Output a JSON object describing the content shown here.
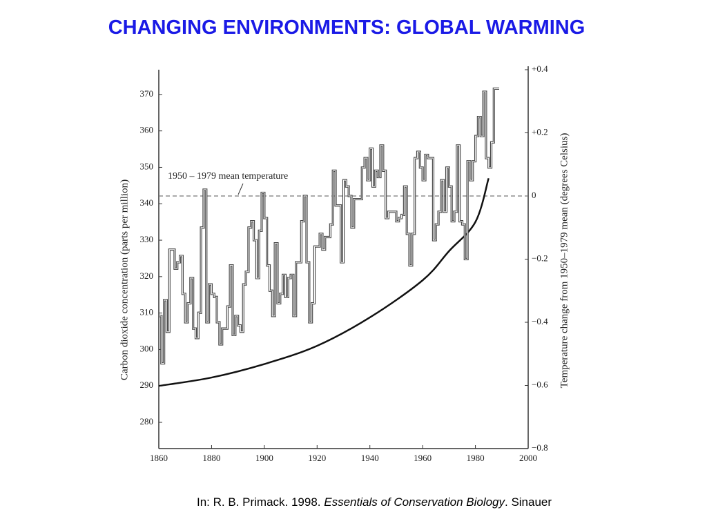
{
  "chart_data": {
    "type": "line",
    "title": "CHANGING ENVIRONMENTS: GLOBAL WARMING",
    "y_label": "Carbon dioxide concentration (parts per million)",
    "y2_label": "Temperature change from 1950–1979 mean (degrees Celsius)",
    "xlim": [
      1860,
      2000
    ],
    "xticks": [
      1860,
      1880,
      1900,
      1920,
      1940,
      1960,
      1980,
      2000
    ],
    "ylim": [
      272.8,
      376.8
    ],
    "yticks": [
      280,
      290,
      300,
      310,
      320,
      330,
      340,
      350,
      360,
      370
    ],
    "y2lim": [
      -0.8,
      0.4
    ],
    "y2ticks": [
      {
        "value": 0.4,
        "label": "+0.4"
      },
      {
        "value": 0.2,
        "label": "+0.2"
      },
      0,
      {
        "value": -0.2,
        "label": "−0.2"
      },
      {
        "value": -0.4,
        "label": "−0.4"
      },
      {
        "value": -0.6,
        "label": "−0.6"
      },
      {
        "value": -0.8,
        "label": "−0.8"
      }
    ],
    "reference_line": {
      "value": 0,
      "axis": "y2",
      "label": "1950 – 1979 mean temperature"
    },
    "series": [
      {
        "name": "Carbon dioxide concentration",
        "color": "#111111",
        "axis": "y",
        "x": [
          1860,
          1880,
          1900,
          1920,
          1940,
          1960,
          1970,
          1980,
          1985
        ],
        "values": [
          290,
          292.3,
          296,
          301,
          308.8,
          319,
          327,
          335,
          347
        ]
      },
      {
        "name": "Temperature change",
        "color": "#444444",
        "axis": "y2",
        "drawstyle": "steps",
        "x": [
          1860,
          1861,
          1862,
          1863,
          1864,
          1865,
          1866,
          1867,
          1868,
          1869,
          1870,
          1871,
          1872,
          1873,
          1874,
          1875,
          1876,
          1877,
          1878,
          1879,
          1880,
          1881,
          1882,
          1883,
          1884,
          1885,
          1886,
          1887,
          1888,
          1889,
          1890,
          1891,
          1892,
          1893,
          1894,
          1895,
          1896,
          1897,
          1898,
          1899,
          1900,
          1901,
          1902,
          1903,
          1904,
          1905,
          1906,
          1907,
          1908,
          1909,
          1910,
          1911,
          1912,
          1913,
          1914,
          1915,
          1916,
          1917,
          1918,
          1919,
          1920,
          1921,
          1922,
          1923,
          1924,
          1925,
          1926,
          1927,
          1928,
          1929,
          1930,
          1931,
          1932,
          1933,
          1934,
          1935,
          1936,
          1937,
          1938,
          1939,
          1940,
          1941,
          1942,
          1943,
          1944,
          1945,
          1946,
          1947,
          1948,
          1949,
          1950,
          1951,
          1952,
          1953,
          1954,
          1955,
          1956,
          1957,
          1958,
          1959,
          1960,
          1961,
          1962,
          1963,
          1964,
          1965,
          1966,
          1967,
          1968,
          1969,
          1970,
          1971,
          1972,
          1973,
          1974,
          1975,
          1976,
          1977,
          1978,
          1979,
          1980,
          1981,
          1982,
          1983,
          1984,
          1985,
          1986,
          1987,
          1988
        ],
        "values": [
          -0.38,
          -0.53,
          -0.33,
          -0.43,
          -0.17,
          -0.17,
          -0.23,
          -0.21,
          -0.19,
          -0.31,
          -0.4,
          -0.34,
          -0.26,
          -0.42,
          -0.45,
          -0.37,
          -0.1,
          0.02,
          -0.4,
          -0.28,
          -0.31,
          -0.32,
          -0.4,
          -0.47,
          -0.42,
          -0.42,
          -0.35,
          -0.22,
          -0.44,
          -0.38,
          -0.41,
          -0.43,
          -0.28,
          -0.24,
          -0.1,
          -0.08,
          -0.14,
          -0.26,
          -0.11,
          0.01,
          -0.07,
          -0.22,
          -0.3,
          -0.38,
          -0.15,
          -0.34,
          -0.31,
          -0.25,
          -0.32,
          -0.26,
          -0.25,
          -0.38,
          -0.21,
          -0.21,
          -0.08,
          0,
          -0.21,
          -0.4,
          -0.34,
          -0.16,
          -0.16,
          -0.12,
          -0.17,
          -0.13,
          -0.13,
          -0.09,
          0.08,
          -0.03,
          -0.03,
          -0.21,
          0.05,
          0.03,
          0,
          -0.1,
          -0.01,
          -0.01,
          -0.01,
          0.09,
          0.12,
          0.05,
          0.15,
          0.03,
          0.08,
          0.06,
          0.16,
          0.08,
          -0.07,
          -0.05,
          -0.05,
          -0.05,
          -0.08,
          -0.07,
          -0.06,
          0.03,
          -0.12,
          -0.22,
          -0.12,
          0.12,
          0.14,
          0.09,
          0.05,
          0.13,
          0.12,
          0.12,
          -0.14,
          -0.09,
          -0.05,
          0.05,
          -0.05,
          0.09,
          0.03,
          -0.08,
          -0.05,
          0.16,
          -0.08,
          -0.09,
          -0.2,
          0.11,
          0.05,
          0.11,
          0.19,
          0.25,
          0.19,
          0.33,
          0.12,
          0.09,
          0.17,
          0.34,
          0.34
        ]
      }
    ]
  },
  "caption": {
    "prefix": "In: R. B. Primack. 1998. ",
    "book": "Essentials of Conservation Biology",
    "suffix": ". Sinauer"
  }
}
